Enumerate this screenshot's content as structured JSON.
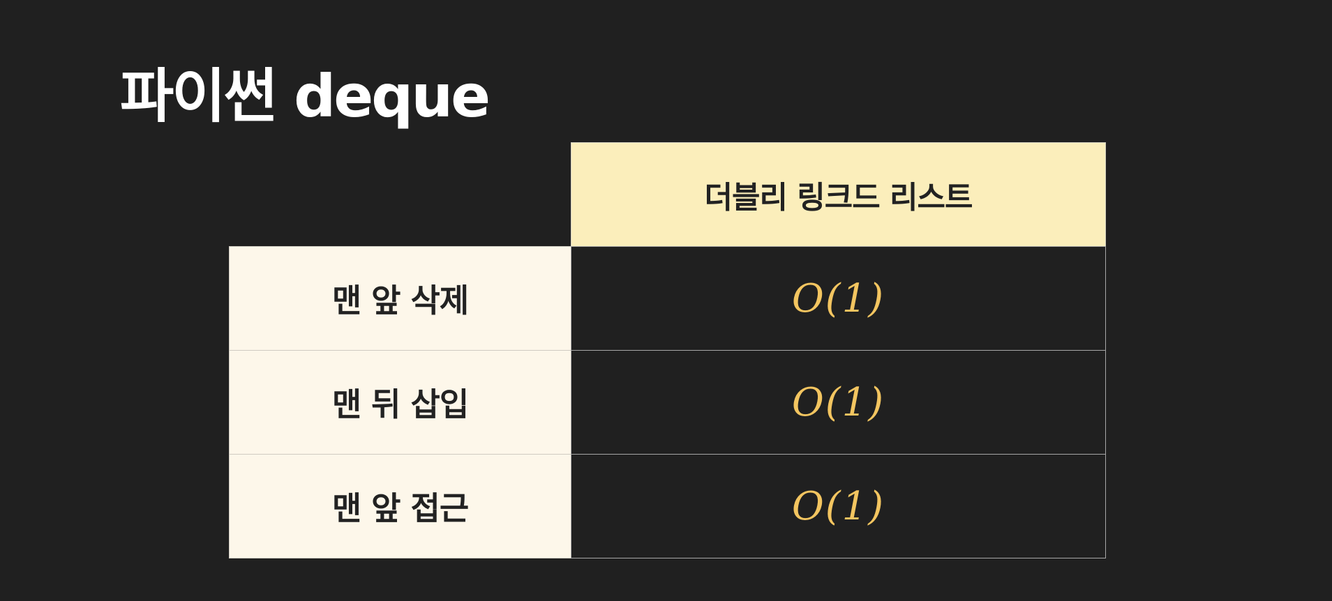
{
  "slide": {
    "title": "파이썬 deque"
  },
  "table": {
    "column_header": "더블리 링크드 리스트",
    "rows": [
      {
        "label": "맨 앞 삭제",
        "value": "O(1)"
      },
      {
        "label": "맨 뒤 삽입",
        "value": "O(1)"
      },
      {
        "label": "맨 앞 접근",
        "value": "O(1)"
      }
    ]
  },
  "colors": {
    "background": "#202020",
    "title": "#ffffff",
    "header_fill": "#fbeebb",
    "row_label_fill": "#fdf7ea",
    "value_text": "#f3c560",
    "label_text": "#222222"
  }
}
